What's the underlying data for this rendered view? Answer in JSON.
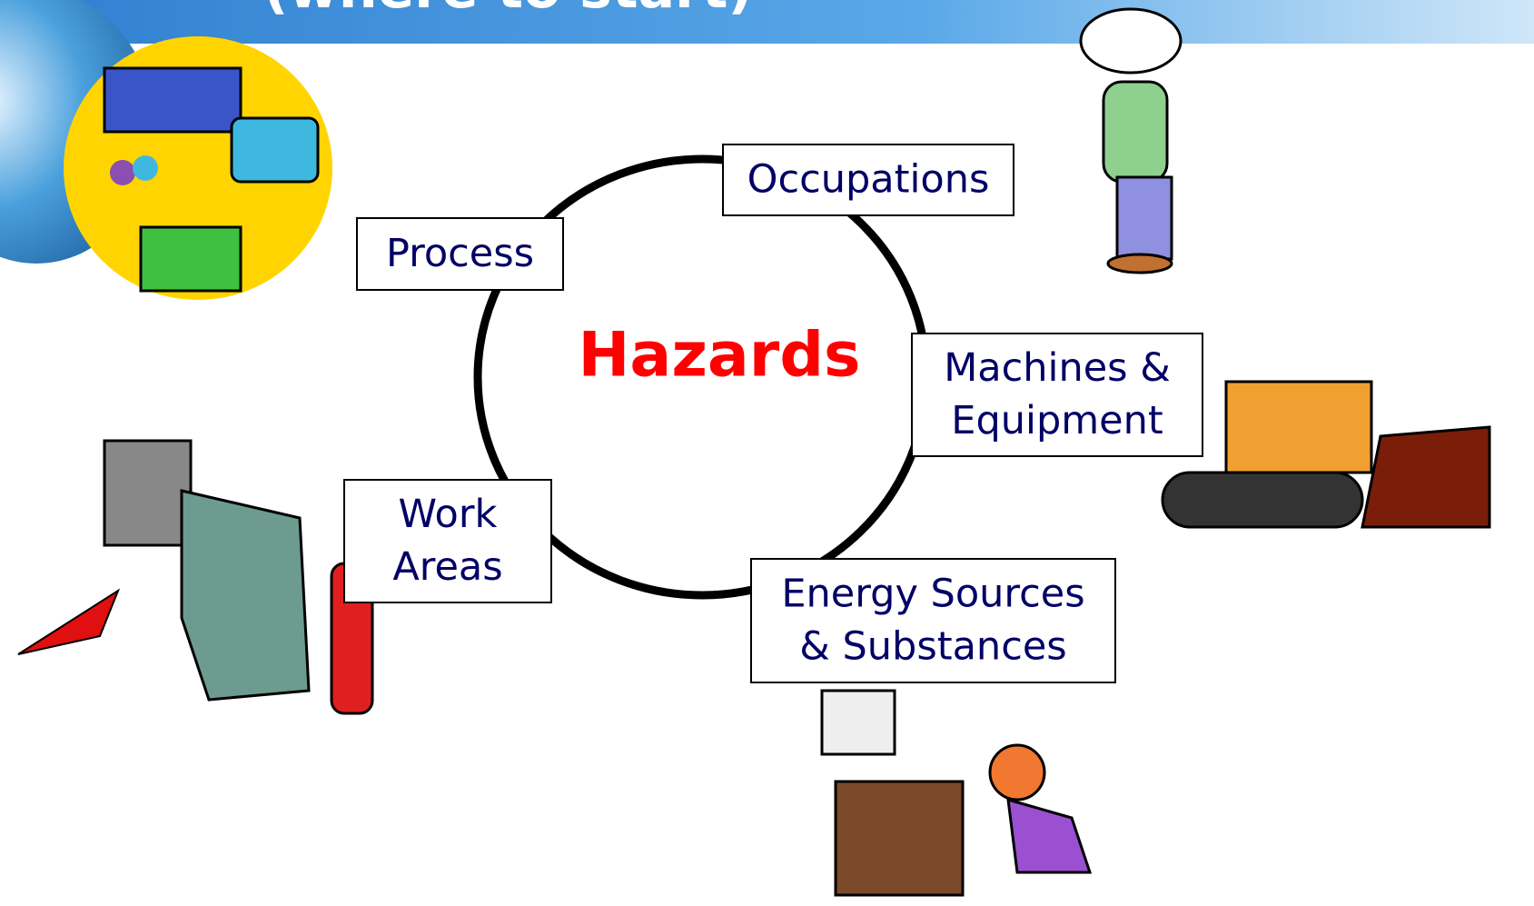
{
  "title": "(where to start)",
  "center": "Hazards",
  "nodes": [
    {
      "lines": [
        "Occupations"
      ]
    },
    {
      "lines": [
        "Process"
      ]
    },
    {
      "lines": [
        "Machines &",
        "Equipment"
      ]
    },
    {
      "lines": [
        "Work",
        "Areas"
      ]
    },
    {
      "lines": [
        "Energy Sources",
        "& Substances"
      ]
    }
  ]
}
